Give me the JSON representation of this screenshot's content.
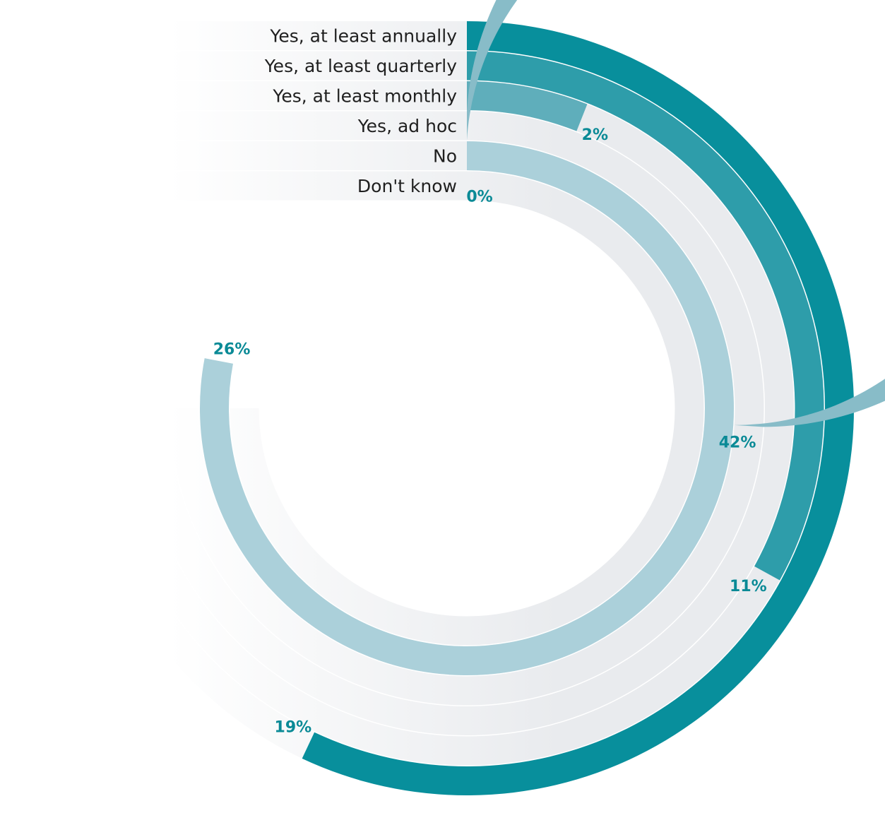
{
  "chart_data": {
    "type": "radial-bar",
    "scale_max_percent": 25,
    "categories": [
      "Yes, at least annually",
      "Yes, at least quarterly",
      "Yes, at least monthly",
      "Yes, ad hoc",
      "No",
      "Don't know"
    ],
    "values": [
      19,
      11,
      2,
      42,
      26,
      0
    ],
    "value_labels": [
      "19%",
      "11%",
      "2%",
      "42%",
      "26%",
      "0%"
    ],
    "colors": [
      "#088f9c",
      "#2e9daa",
      "#5faebb",
      "#88bcc8",
      "#abd0da",
      "#c9dfe5"
    ],
    "track_color": "#e9ebee"
  }
}
